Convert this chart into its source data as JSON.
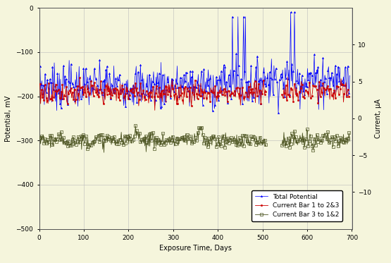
{
  "title": "",
  "xlabel": "Exposure Time, Days",
  "ylabel_left": "Potential, mV",
  "ylabel_right": "Current, μA",
  "xlim": [
    0,
    700
  ],
  "ylim_left": [
    -500,
    0
  ],
  "ylim_right": [
    -15,
    15
  ],
  "xticks": [
    0,
    100,
    200,
    300,
    400,
    500,
    600,
    700
  ],
  "yticks_left": [
    0,
    -100,
    -200,
    -300,
    -400,
    -500
  ],
  "yticks_right": [
    10,
    5,
    0,
    -5,
    -10
  ],
  "background_color": "#f5f5dc",
  "grid_color": "#bbbbbb",
  "legend_labels": [
    "Total Potential",
    "Current Bar 1 to 2&3",
    "Current Bar 3 to 1&2"
  ],
  "potential_base": -175,
  "potential_noise": 25,
  "current1_base": 3.5,
  "current1_noise": 0.8,
  "current2_base": -3.0,
  "current2_noise": 0.5,
  "n_points": 500
}
